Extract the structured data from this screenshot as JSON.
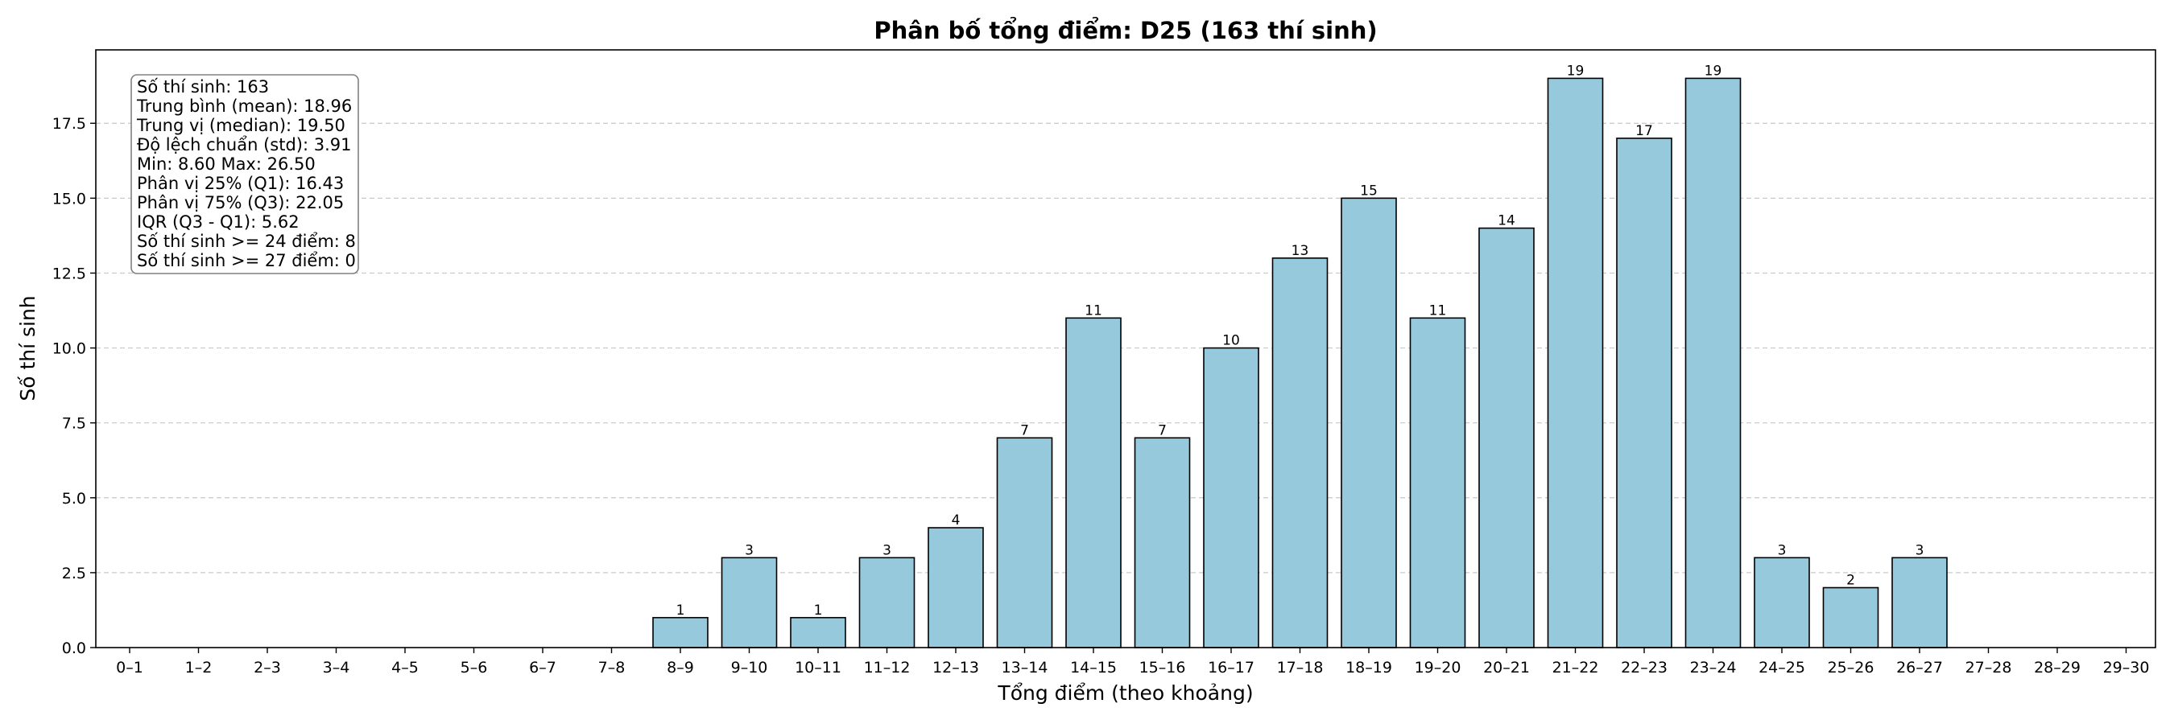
{
  "chart_data": {
    "type": "bar",
    "title": "Phân bố tổng điểm: D25 (163 thí sinh)",
    "xlabel": "Tổng điểm (theo khoảng)",
    "ylabel": "Số thí sinh",
    "ylim": [
      0,
      19.95
    ],
    "yticks": [
      "0.0",
      "2.5",
      "5.0",
      "7.5",
      "10.0",
      "12.5",
      "15.0",
      "17.5"
    ],
    "ytick_values": [
      0,
      2.5,
      5,
      7.5,
      10,
      12.5,
      15,
      17.5
    ],
    "grid": "y, dashed",
    "bar_color": "#97c9dd",
    "edge_color": "#000000",
    "categories": [
      "0–1",
      "1–2",
      "2–3",
      "3–4",
      "4–5",
      "5–6",
      "6–7",
      "7–8",
      "8–9",
      "9–10",
      "10–11",
      "11–12",
      "12–13",
      "13–14",
      "14–15",
      "15–16",
      "16–17",
      "17–18",
      "18–19",
      "19–20",
      "20–21",
      "21–22",
      "22–23",
      "23–24",
      "24–25",
      "25–26",
      "26–27",
      "27–28",
      "28–29",
      "29–30"
    ],
    "values": [
      0,
      0,
      0,
      0,
      0,
      0,
      0,
      0,
      1,
      3,
      1,
      3,
      4,
      7,
      11,
      7,
      10,
      13,
      15,
      11,
      14,
      19,
      17,
      19,
      3,
      2,
      3,
      0,
      0,
      0
    ],
    "stats_box": {
      "placement": "top-left",
      "lines": [
        "Số thí sinh: 163",
        "Trung bình (mean): 18.96",
        "Trung vị (median): 19.50",
        "Độ lệch chuẩn (std): 3.91",
        "Min: 8.60   Max: 26.50",
        "Phân vị 25% (Q1): 16.43",
        "Phân vị 75% (Q3): 22.05",
        "IQR (Q3 - Q1): 5.62",
        "Số thí sinh >= 24 điểm: 8",
        "Số thí sinh >= 27 điểm: 0"
      ]
    }
  }
}
